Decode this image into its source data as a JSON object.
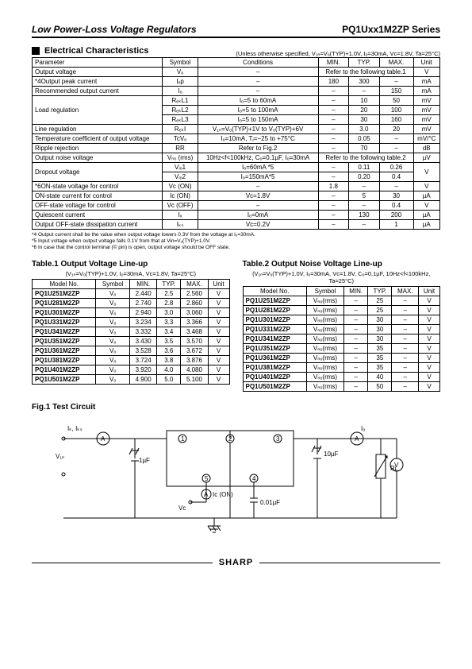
{
  "header": {
    "left": "Low Power-Loss Voltage Regulators",
    "right": "PQ1Uxx1M2ZP Series"
  },
  "section_title": "Electrical Characteristics",
  "main_condition": "(Unless otherwise specified, V₁ₙ=Vₒ(TYP)+1.0V, Iₒ=30mA, Vᴄ=1.8V, Ta=25°C)",
  "main_table": {
    "headers": [
      "Parameter",
      "Symbol",
      "Conditions",
      "MIN.",
      "TYP.",
      "MAX.",
      "Unit"
    ],
    "rows": [
      {
        "p": "Output voltage",
        "s": "Vₒ",
        "c": "–",
        "m": "Refer to the following table.1",
        "mspan": 3,
        "u": "V"
      },
      {
        "p": "*4Output peak current",
        "s": "Iₒp",
        "c": "–",
        "min": "180",
        "typ": "300",
        "max": "–",
        "u": "mA"
      },
      {
        "p": "Recommended output current",
        "s": "Iₒ",
        "c": "–",
        "min": "–",
        "typ": "–",
        "max": "150",
        "u": "mA"
      },
      {
        "p": "Load regulation",
        "rowspan": 3,
        "s": "RₑₖL1",
        "c": "Iₒ=5 to 60mA",
        "min": "–",
        "typ": "10",
        "max": "50",
        "u": "mV"
      },
      {
        "s": "RₑₖL2",
        "c": "Iₒ=5 to 100mA",
        "min": "–",
        "typ": "20",
        "max": "100",
        "u": "mV"
      },
      {
        "s": "RₑₖL3",
        "c": "Iₒ=5 to 150mA",
        "min": "–",
        "typ": "30",
        "max": "160",
        "u": "mV"
      },
      {
        "p": "Line regulation",
        "s": "RₑₖI",
        "c": "V₁ₙ=Vₒ(TYP)+1V to Vₒ(TYP)+6V",
        "min": "–",
        "typ": "3.0",
        "max": "20",
        "u": "mV"
      },
      {
        "p": "Temperature coefficient of output voltage",
        "s": "TcVₒ",
        "c": "Iₒ=10mA, Tⱼ=−25 to +75°C",
        "min": "–",
        "typ": "0.05",
        "max": "–",
        "u": "mV/°C"
      },
      {
        "p": "Ripple rejection",
        "s": "RR",
        "c": "Refer to Fig.2",
        "min": "–",
        "typ": "70",
        "max": "–",
        "u": "dB"
      },
      {
        "p": "Output noise voltage",
        "s": "Vₙₒ (rms)",
        "c": "10Hz<f<100kHz, Cₒ=0.1µF, Iₒ=30mA",
        "m": "Refer to the following table.2",
        "mspan": 3,
        "u": "µV"
      },
      {
        "p": "Dropout voltage",
        "rowspan": 2,
        "s": "Vᵢₒ1",
        "c": "Iₒ=60mA *5",
        "min": "–",
        "typ": "0.11",
        "max": "0.26",
        "u": "V",
        "urowspan": 2
      },
      {
        "s": "Vᵢₒ2",
        "c": "Iₒ=150mA*5",
        "min": "–",
        "typ": "0.20",
        "max": "0.4"
      },
      {
        "p": "*6ON-state voltage for control",
        "s": "Vᴄ (ON)",
        "c": "–",
        "min": "1.8",
        "typ": "–",
        "max": "–",
        "u": "V"
      },
      {
        "p": "ON-state current for control",
        "s": "Iᴄ (ON)",
        "c": "Vᴄ=1.8V",
        "min": "–",
        "typ": "5",
        "max": "30",
        "u": "µA"
      },
      {
        "p": "OFF-state voltage for control",
        "s": "Vᴄ (OFF)",
        "c": "–",
        "min": "–",
        "typ": "–",
        "max": "0.4",
        "u": "V"
      },
      {
        "p": "Quiescent current",
        "s": "Iₓ",
        "c": "Iₒ=0mA",
        "min": "–",
        "typ": "130",
        "max": "200",
        "u": "µA"
      },
      {
        "p": "Output OFF-state dissipation current",
        "s": "Iₖₛ",
        "c": "Vᴄ=0.2V",
        "min": "–",
        "typ": "–",
        "max": "1",
        "u": "µA"
      }
    ]
  },
  "footnotes": [
    "*4 Output current shall be the value when output voltage lowers 0.3V from the voltage at Iₒ=30mA.",
    "*5 Input voltage when output voltage falls 0.1V from that at Vin=Vₒ(TYP)+1.0V.",
    "*6 In case that the control terminal (© pin) is open, output voltage should be OFF state."
  ],
  "table1": {
    "title": "Table.1  Output Voltage Line-up",
    "cond": "(V₁ₙ=Vₒ(TYP)+1.0V, Iₒ=30mA, Vᴄ=1.8V, Ta=25°C)",
    "headers": [
      "Model No.",
      "Symbol",
      "MIN.",
      "TYP.",
      "MAX.",
      "Unit"
    ],
    "rows": [
      [
        "PQ1U251M2ZP",
        "Vₒ",
        "2.440",
        "2.5",
        "2.560",
        "V"
      ],
      [
        "PQ1U281M2ZP",
        "Vₒ",
        "2.740",
        "2.8",
        "2.860",
        "V"
      ],
      [
        "PQ1U301M2ZP",
        "Vₒ",
        "2.940",
        "3.0",
        "3.060",
        "V"
      ],
      [
        "PQ1U331M2ZP",
        "Vₒ",
        "3.234",
        "3.3",
        "3.366",
        "V"
      ],
      [
        "PQ1U341M2ZP",
        "Vₒ",
        "3.332",
        "3.4",
        "3.468",
        "V"
      ],
      [
        "PQ1U351M2ZP",
        "Vₒ",
        "3.430",
        "3.5",
        "3.570",
        "V"
      ],
      [
        "PQ1U361M2ZP",
        "Vₒ",
        "3.528",
        "3.6",
        "3.672",
        "V"
      ],
      [
        "PQ1U381M2ZP",
        "Vₒ",
        "3.724",
        "3.8",
        "3.876",
        "V"
      ],
      [
        "PQ1U401M2ZP",
        "Vₒ",
        "3.920",
        "4.0",
        "4.080",
        "V"
      ],
      [
        "PQ1U501M2ZP",
        "Vₒ",
        "4.900",
        "5.0",
        "5.100",
        "V"
      ]
    ]
  },
  "table2": {
    "title": "Table.2  Output Noise Voltage Line-up",
    "cond": "(V₁ₙ=Vₒ(TYP)+1.0V, Iₒ=30mA, Vᴄ=1.8V, Cₒ=0.1µF, 10Hz<f<100kHz, Ta=25°C)",
    "headers": [
      "Model No.",
      "Symbol",
      "MIN.",
      "TYP.",
      "MAX.",
      "Unit"
    ],
    "rows": [
      [
        "PQ1U251M2ZP",
        "Vₙₒ(rms)",
        "–",
        "25",
        "–",
        "V"
      ],
      [
        "PQ1U281M2ZP",
        "Vₙₒ(rms)",
        "–",
        "25",
        "–",
        "V"
      ],
      [
        "PQ1U301M2ZP",
        "Vₙₒ(rms)",
        "–",
        "30",
        "–",
        "V"
      ],
      [
        "PQ1U331M2ZP",
        "Vₙₒ(rms)",
        "–",
        "30",
        "–",
        "V"
      ],
      [
        "PQ1U341M2ZP",
        "Vₙₒ(rms)",
        "–",
        "30",
        "–",
        "V"
      ],
      [
        "PQ1U351M2ZP",
        "Vₙₒ(rms)",
        "–",
        "35",
        "–",
        "V"
      ],
      [
        "PQ1U361M2ZP",
        "Vₙₒ(rms)",
        "–",
        "35",
        "–",
        "V"
      ],
      [
        "PQ1U381M2ZP",
        "Vₙₒ(rms)",
        "–",
        "35",
        "–",
        "V"
      ],
      [
        "PQ1U401M2ZP",
        "Vₙₒ(rms)",
        "–",
        "40",
        "–",
        "V"
      ],
      [
        "PQ1U501M2ZP",
        "Vₙₒ(rms)",
        "–",
        "50",
        "–",
        "V"
      ]
    ]
  },
  "fig1_title": "Fig.1   Test Circuit",
  "fig_labels": {
    "iq": "Iₖ, Iₖₛ",
    "vin": "V₁ₙ",
    "c1": "1µF",
    "vc": "Vᴄ",
    "icon": "Iᴄ (ON)",
    "c2": "0.01µF",
    "c3": "10µF",
    "io": "Iₒ",
    "rl": "Rʟ",
    "a": "A",
    "v": "V"
  },
  "footer_logo": "SHARP"
}
